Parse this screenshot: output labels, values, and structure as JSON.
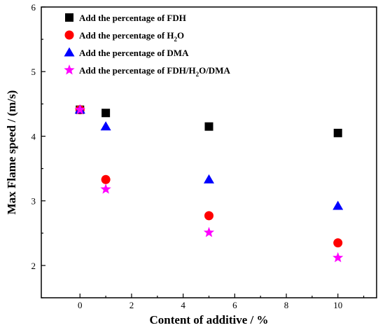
{
  "chart_data": {
    "type": "scatter",
    "xlabel": "Content of additive / %",
    "ylabel": "Max Flame speed / (m/s)",
    "xlim": [
      -1.5,
      11.5
    ],
    "ylim": [
      1.5,
      6
    ],
    "xticks": [
      0,
      2,
      4,
      6,
      8,
      10
    ],
    "yticks": [
      2,
      3,
      4,
      5,
      6
    ],
    "grid": false,
    "legend_position": "top-left",
    "series": [
      {
        "name": "Add the percentage of FDH",
        "marker": "square",
        "color": "#000000",
        "x": [
          0,
          1,
          5,
          10
        ],
        "y": [
          4.41,
          4.36,
          4.15,
          4.05
        ]
      },
      {
        "name": "Add the percentage of H2O",
        "name_parts": [
          "Add the percentage of H",
          "2",
          "O"
        ],
        "marker": "circle",
        "color": "#ff0000",
        "x": [
          0,
          1,
          5,
          10
        ],
        "y": [
          4.41,
          3.33,
          2.77,
          2.35
        ]
      },
      {
        "name": "Add the percentage of DMA",
        "marker": "triangle",
        "color": "#0000ff",
        "x": [
          0,
          1,
          5,
          10
        ],
        "y": [
          4.41,
          4.15,
          3.33,
          2.92
        ]
      },
      {
        "name": "Add the percentage of FDH/H2O/DMA",
        "name_parts": [
          "Add the percentage of FDH/H",
          "2",
          "O/DMA"
        ],
        "marker": "star",
        "color": "#ff00ff",
        "x": [
          0,
          1,
          5,
          10
        ],
        "y": [
          4.41,
          3.18,
          2.51,
          2.12
        ]
      }
    ]
  }
}
